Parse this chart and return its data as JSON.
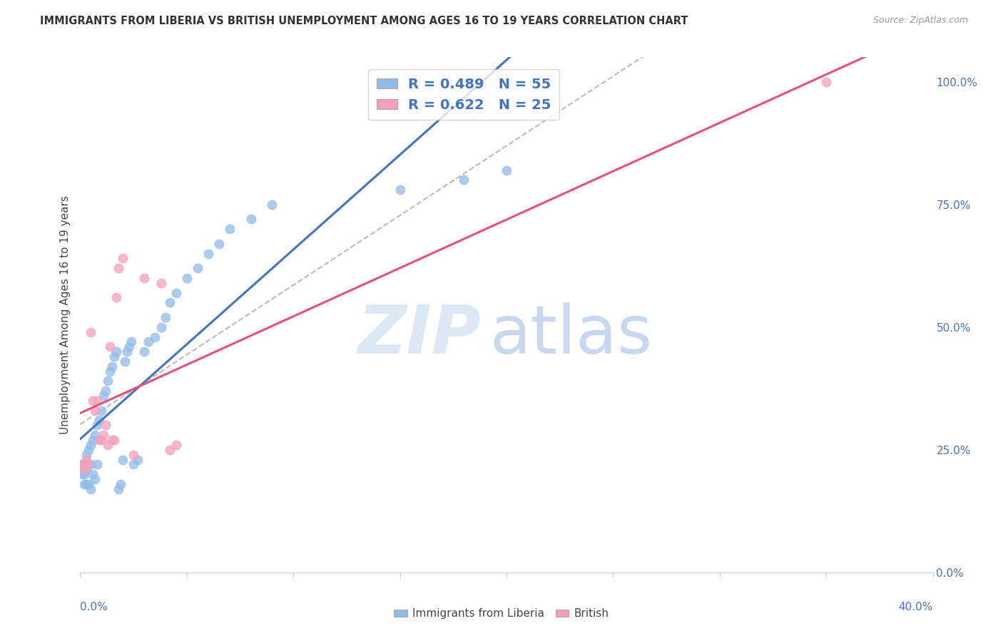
{
  "title": "IMMIGRANTS FROM LIBERIA VS BRITISH UNEMPLOYMENT AMONG AGES 16 TO 19 YEARS CORRELATION CHART",
  "source": "Source: ZipAtlas.com",
  "ylabel": "Unemployment Among Ages 16 to 19 years",
  "blue_R": 0.489,
  "blue_N": 55,
  "pink_R": 0.622,
  "pink_N": 25,
  "blue_color": "#92bce8",
  "pink_color": "#f4a0b8",
  "blue_line_color": "#4472c4",
  "pink_line_color": "#e8507a",
  "gray_line_color": "#bbbbbb",
  "blue_label": "Immigrants from Liberia",
  "pink_label": "British",
  "legend_text_color": "#4472c4",
  "axis_label_color": "#4472c4",
  "title_color": "#333333",
  "source_color": "#999999",
  "grid_color": "#e0e0e0",
  "watermark_zip_color": "#dde8f5",
  "watermark_atlas_color": "#c8d8f0",
  "xlim": [
    0,
    0.4
  ],
  "ylim": [
    0,
    1.05
  ],
  "right_yticks": [
    0.0,
    0.25,
    0.5,
    0.75,
    1.0
  ],
  "right_yticklabels": [
    "0.0%",
    "25.0%",
    "50.0%",
    "75.0%",
    "100.0%"
  ],
  "bottom_xtick_labels": [
    "0.0%",
    "40.0%"
  ],
  "blue_x": [
    0.001,
    0.001,
    0.002,
    0.002,
    0.002,
    0.003,
    0.003,
    0.003,
    0.004,
    0.004,
    0.004,
    0.005,
    0.005,
    0.005,
    0.006,
    0.006,
    0.007,
    0.007,
    0.008,
    0.008,
    0.009,
    0.01,
    0.011,
    0.012,
    0.013,
    0.014,
    0.015,
    0.016,
    0.017,
    0.018,
    0.019,
    0.02,
    0.021,
    0.022,
    0.023,
    0.024,
    0.025,
    0.027,
    0.03,
    0.032,
    0.035,
    0.038,
    0.04,
    0.042,
    0.045,
    0.05,
    0.055,
    0.06,
    0.065,
    0.07,
    0.08,
    0.09,
    0.15,
    0.18,
    0.2
  ],
  "blue_y": [
    0.22,
    0.2,
    0.22,
    0.2,
    0.18,
    0.24,
    0.21,
    0.18,
    0.25,
    0.22,
    0.18,
    0.26,
    0.22,
    0.17,
    0.27,
    0.2,
    0.28,
    0.19,
    0.3,
    0.22,
    0.31,
    0.33,
    0.36,
    0.37,
    0.39,
    0.41,
    0.42,
    0.44,
    0.45,
    0.17,
    0.18,
    0.23,
    0.43,
    0.45,
    0.46,
    0.47,
    0.22,
    0.23,
    0.45,
    0.47,
    0.48,
    0.5,
    0.52,
    0.55,
    0.57,
    0.6,
    0.62,
    0.65,
    0.67,
    0.7,
    0.72,
    0.75,
    0.78,
    0.8,
    0.82
  ],
  "pink_x": [
    0.001,
    0.002,
    0.003,
    0.004,
    0.005,
    0.006,
    0.007,
    0.008,
    0.009,
    0.01,
    0.011,
    0.012,
    0.013,
    0.014,
    0.015,
    0.016,
    0.017,
    0.018,
    0.02,
    0.025,
    0.03,
    0.038,
    0.042,
    0.045,
    0.35
  ],
  "pink_y": [
    0.22,
    0.21,
    0.23,
    0.22,
    0.49,
    0.35,
    0.33,
    0.35,
    0.27,
    0.27,
    0.28,
    0.3,
    0.26,
    0.46,
    0.27,
    0.27,
    0.56,
    0.62,
    0.64,
    0.24,
    0.6,
    0.59,
    0.25,
    0.26,
    1.0
  ]
}
